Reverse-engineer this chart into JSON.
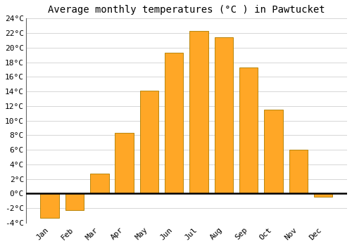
{
  "months": [
    "Jan",
    "Feb",
    "Mar",
    "Apr",
    "May",
    "Jun",
    "Jul",
    "Aug",
    "Sep",
    "Oct",
    "Nov",
    "Dec"
  ],
  "values": [
    -3.3,
    -2.3,
    2.7,
    8.3,
    14.1,
    19.3,
    22.3,
    21.4,
    17.3,
    11.5,
    6.0,
    -0.5
  ],
  "bar_color": "#FFA726",
  "bar_edge_color": "#B8860B",
  "title": "Average monthly temperatures (°C ) in Pawtucket",
  "ylim": [
    -4,
    24
  ],
  "yticks": [
    -4,
    -2,
    0,
    2,
    4,
    6,
    8,
    10,
    12,
    14,
    16,
    18,
    20,
    22,
    24
  ],
  "background_color": "#ffffff",
  "plot_bg_color": "#ffffff",
  "grid_color": "#d0d0d0",
  "title_fontsize": 10,
  "tick_fontsize": 8,
  "zero_line_color": "#000000",
  "bar_width": 0.75
}
